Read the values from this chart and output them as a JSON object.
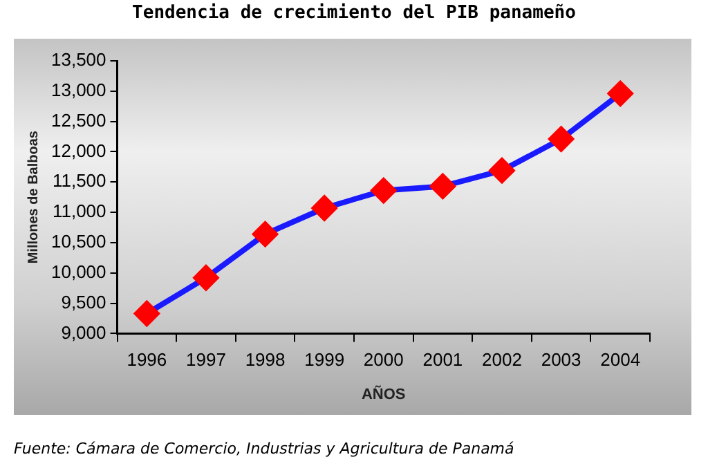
{
  "chart_data": {
    "type": "line",
    "title": "Tendencia de crecimiento del PIB panameño",
    "xlabel": "AÑOS",
    "ylabel": "Millones de Balboas",
    "categories": [
      "1996",
      "1997",
      "1998",
      "1999",
      "2000",
      "2001",
      "2002",
      "2003",
      "2004"
    ],
    "series": [
      {
        "color": "#1a1aff",
        "colors": [
          "#ff0000",
          "#ff0000",
          "#ff0000",
          "#ff0000",
          "#ff0000",
          "#ff0000",
          "#ff0000",
          "#ff0000",
          "#ff0000"
        ],
        "values": [
          9330,
          9920,
          10640,
          11070,
          11360,
          11430,
          11690,
          12210,
          12960
        ]
      }
    ],
    "ylim": [
      9000,
      13500
    ],
    "yticks": [
      {
        "value": 9000,
        "label": "9,000"
      },
      {
        "value": 9500,
        "label": "9,500"
      },
      {
        "value": 10000,
        "label": "10,000"
      },
      {
        "value": 10500,
        "label": "10,500"
      },
      {
        "value": 11000,
        "label": "11,000"
      },
      {
        "value": 11500,
        "label": "11,500"
      },
      {
        "value": 12000,
        "label": "12,000"
      },
      {
        "value": 12500,
        "label": "12,500"
      },
      {
        "value": 13000,
        "label": "13,000"
      },
      {
        "value": 13500,
        "label": "13,500"
      }
    ],
    "marker": "diamond",
    "line_style": "solid",
    "annotations": [
      "Fuente: Cámara de Comercio, Industrias y Agricultura de Panamá"
    ]
  }
}
